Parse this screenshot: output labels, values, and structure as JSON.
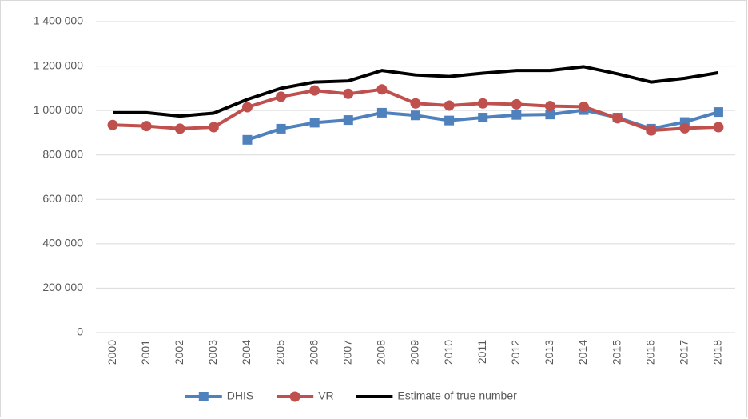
{
  "chart_data": {
    "type": "line",
    "categories": [
      "2000",
      "2001",
      "2002",
      "2003",
      "2004",
      "2005",
      "2006",
      "2007",
      "2008",
      "2009",
      "2010",
      "2011",
      "2012",
      "2013",
      "2014",
      "2015",
      "2016",
      "2017",
      "2018"
    ],
    "series": [
      {
        "name": "DHIS",
        "color": "#4f81bd",
        "marker": "square",
        "values": [
          null,
          null,
          null,
          null,
          868000,
          918000,
          945000,
          957000,
          990000,
          978000,
          955000,
          968000,
          980000,
          982000,
          1002000,
          968000,
          918000,
          948000,
          993000
        ]
      },
      {
        "name": "VR",
        "color": "#c0504d",
        "marker": "circle",
        "values": [
          935000,
          930000,
          918000,
          925000,
          1015000,
          1062000,
          1090000,
          1075000,
          1095000,
          1032000,
          1022000,
          1032000,
          1028000,
          1020000,
          1017000,
          965000,
          910000,
          920000,
          925000
        ]
      },
      {
        "name": "Estimate of true number",
        "color": "#000000",
        "marker": null,
        "values": [
          990000,
          990000,
          975000,
          988000,
          1050000,
          1100000,
          1128000,
          1133000,
          1180000,
          1160000,
          1153000,
          1168000,
          1180000,
          1180000,
          1197000,
          1165000,
          1128000,
          1145000,
          1170000
        ]
      }
    ],
    "ylim": [
      0,
      1400000
    ],
    "yticks": [
      0,
      {
        "value": 200000,
        "label": "200 000"
      },
      {
        "value": 400000,
        "label": "400 000"
      },
      {
        "value": 600000,
        "label": "600 000"
      },
      {
        "value": 800000,
        "label": "800 000"
      },
      {
        "value": 1000000,
        "label": "1 000 000"
      },
      {
        "value": 1200000,
        "label": "1 200 000"
      },
      {
        "value": 1400000,
        "label": "1 400 000"
      }
    ],
    "grid": true,
    "legend": "bottom"
  }
}
